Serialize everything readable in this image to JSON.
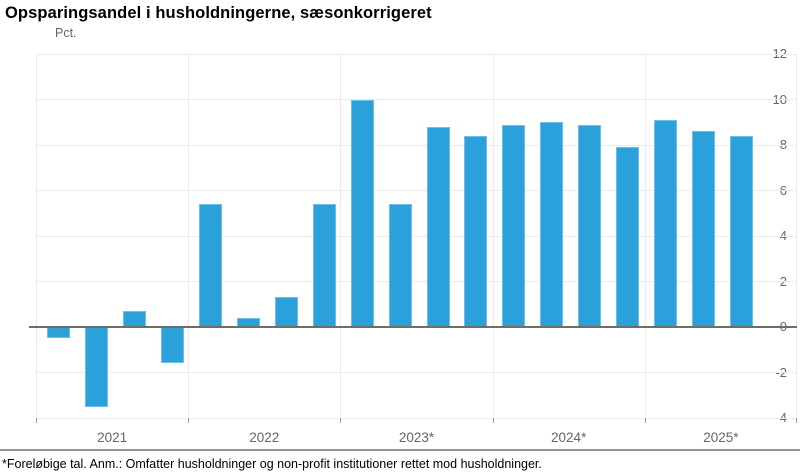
{
  "title": "Opsparingsandel i husholdningerne, sæsonkorrigeret",
  "unit_label": "Pct.",
  "footnote": "*Foreløbige tal. Anm.: Omfatter husholdninger og non-profit institutioner rettet mod husholdninger.",
  "colors": {
    "bar_fill": "#2aa1da",
    "bar_edge": "#6fbfe5",
    "gridline": "#ebebeb",
    "zero_line": "#6e6e64",
    "tick_text": "#66665c",
    "separator": "#8f948f"
  },
  "chart_data": {
    "type": "bar",
    "title": "Opsparingsandel i husholdningerne, sæsonkorrigeret",
    "ylabel": "Pct.",
    "xlabel": "",
    "ylim": [
      -4,
      12
    ],
    "yticks": [
      12,
      10,
      8,
      6,
      4,
      2,
      0,
      -2,
      -4
    ],
    "grid": true,
    "legend": "none",
    "frequency": "quarterly",
    "x_groups": [
      {
        "label": "2021",
        "values": [
          -0.5,
          -3.5,
          0.7,
          -1.6
        ]
      },
      {
        "label": "2022",
        "values": [
          5.4,
          0.4,
          1.3,
          5.4
        ]
      },
      {
        "label": "2023*",
        "values": [
          10.0,
          5.4,
          8.8,
          8.4
        ]
      },
      {
        "label": "2024*",
        "values": [
          8.9,
          9.0,
          8.9,
          7.9
        ]
      },
      {
        "label": "2025*",
        "values": [
          9.1,
          8.6,
          8.4
        ]
      }
    ]
  }
}
